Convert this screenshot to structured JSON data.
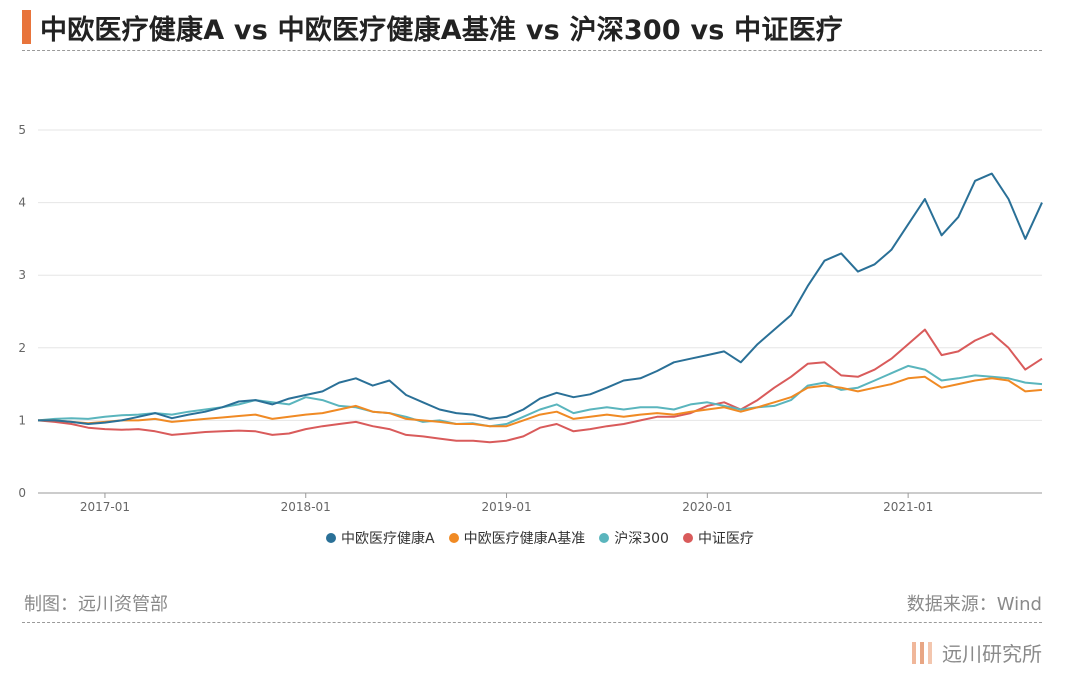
{
  "title": "中欧医疗健康A vs 中欧医疗健康A基准 vs 沪深300 vs 中证医疗",
  "footer": {
    "made_by": "制图：远川资管部",
    "source": "数据来源：Wind",
    "brand": "远川研究所"
  },
  "colors": {
    "accent": "#e8743b",
    "grid": "#e6e6e6",
    "axis_text": "#666666"
  },
  "chart_data": {
    "type": "line",
    "title": "中欧医疗健康A vs 中欧医疗健康A基准 vs 沪深300 vs 中证医疗",
    "xlabel": "",
    "ylabel": "",
    "ylim": [
      0,
      5
    ],
    "yticks": [
      "0",
      "1",
      "2",
      "3",
      "4",
      "5"
    ],
    "xticks": [
      "2017-01",
      "2018-01",
      "2019-01",
      "2020-01",
      "2021-01"
    ],
    "xrange": [
      "2016-09",
      "2021-09"
    ],
    "grid": true,
    "legend": "bottom-center",
    "x": [
      "2016-09",
      "2016-10",
      "2016-11",
      "2016-12",
      "2017-01",
      "2017-02",
      "2017-03",
      "2017-04",
      "2017-05",
      "2017-06",
      "2017-07",
      "2017-08",
      "2017-09",
      "2017-10",
      "2017-11",
      "2017-12",
      "2018-01",
      "2018-02",
      "2018-03",
      "2018-04",
      "2018-05",
      "2018-06",
      "2018-07",
      "2018-08",
      "2018-09",
      "2018-10",
      "2018-11",
      "2018-12",
      "2019-01",
      "2019-02",
      "2019-03",
      "2019-04",
      "2019-05",
      "2019-06",
      "2019-07",
      "2019-08",
      "2019-09",
      "2019-10",
      "2019-11",
      "2019-12",
      "2020-01",
      "2020-02",
      "2020-03",
      "2020-04",
      "2020-05",
      "2020-06",
      "2020-07",
      "2020-08",
      "2020-09",
      "2020-10",
      "2020-11",
      "2020-12",
      "2021-01",
      "2021-02",
      "2021-03",
      "2021-04",
      "2021-05",
      "2021-06",
      "2021-07",
      "2021-08",
      "2021-09"
    ],
    "series": [
      {
        "name": "中欧医疗健康A",
        "color": "#2a7097",
        "values": [
          1.0,
          1.0,
          0.98,
          0.95,
          0.97,
          1.0,
          1.05,
          1.1,
          1.03,
          1.08,
          1.12,
          1.18,
          1.26,
          1.28,
          1.22,
          1.3,
          1.35,
          1.4,
          1.52,
          1.58,
          1.48,
          1.55,
          1.35,
          1.25,
          1.15,
          1.1,
          1.08,
          1.02,
          1.05,
          1.15,
          1.3,
          1.38,
          1.32,
          1.36,
          1.45,
          1.55,
          1.58,
          1.68,
          1.8,
          1.85,
          1.9,
          1.95,
          1.8,
          2.05,
          2.25,
          2.45,
          2.85,
          3.2,
          3.3,
          3.05,
          3.15,
          3.35,
          3.7,
          4.05,
          3.55,
          3.8,
          4.3,
          4.4,
          4.05,
          3.5,
          4.0
        ]
      },
      {
        "name": "中欧医疗健康A基准",
        "color": "#f08a24",
        "values": [
          1.0,
          1.0,
          0.98,
          0.96,
          0.98,
          1.0,
          1.0,
          1.02,
          0.98,
          1.0,
          1.02,
          1.04,
          1.06,
          1.08,
          1.02,
          1.05,
          1.08,
          1.1,
          1.15,
          1.2,
          1.12,
          1.1,
          1.02,
          1.0,
          0.98,
          0.95,
          0.95,
          0.92,
          0.92,
          1.0,
          1.08,
          1.12,
          1.02,
          1.05,
          1.08,
          1.05,
          1.08,
          1.1,
          1.08,
          1.12,
          1.15,
          1.18,
          1.12,
          1.18,
          1.25,
          1.32,
          1.45,
          1.48,
          1.45,
          1.4,
          1.45,
          1.5,
          1.58,
          1.6,
          1.45,
          1.5,
          1.55,
          1.58,
          1.55,
          1.4,
          1.42
        ]
      },
      {
        "name": "沪深300",
        "color": "#5ab5bd",
        "values": [
          1.0,
          1.02,
          1.03,
          1.02,
          1.05,
          1.07,
          1.08,
          1.1,
          1.08,
          1.12,
          1.15,
          1.18,
          1.22,
          1.28,
          1.25,
          1.22,
          1.32,
          1.28,
          1.2,
          1.18,
          1.12,
          1.1,
          1.05,
          0.98,
          1.0,
          0.95,
          0.96,
          0.92,
          0.95,
          1.05,
          1.15,
          1.22,
          1.1,
          1.15,
          1.18,
          1.15,
          1.18,
          1.18,
          1.15,
          1.22,
          1.25,
          1.2,
          1.15,
          1.18,
          1.2,
          1.28,
          1.48,
          1.52,
          1.42,
          1.45,
          1.55,
          1.65,
          1.75,
          1.7,
          1.55,
          1.58,
          1.62,
          1.6,
          1.58,
          1.52,
          1.5
        ]
      },
      {
        "name": "中证医疗",
        "color": "#d95b5b",
        "values": [
          1.0,
          0.98,
          0.95,
          0.9,
          0.88,
          0.87,
          0.88,
          0.85,
          0.8,
          0.82,
          0.84,
          0.85,
          0.86,
          0.85,
          0.8,
          0.82,
          0.88,
          0.92,
          0.95,
          0.98,
          0.92,
          0.88,
          0.8,
          0.78,
          0.75,
          0.72,
          0.72,
          0.7,
          0.72,
          0.78,
          0.9,
          0.95,
          0.85,
          0.88,
          0.92,
          0.95,
          1.0,
          1.05,
          1.05,
          1.1,
          1.2,
          1.25,
          1.15,
          1.28,
          1.45,
          1.6,
          1.78,
          1.8,
          1.62,
          1.6,
          1.7,
          1.85,
          2.05,
          2.25,
          1.9,
          1.95,
          2.1,
          2.2,
          2.0,
          1.7,
          1.85
        ]
      }
    ]
  }
}
